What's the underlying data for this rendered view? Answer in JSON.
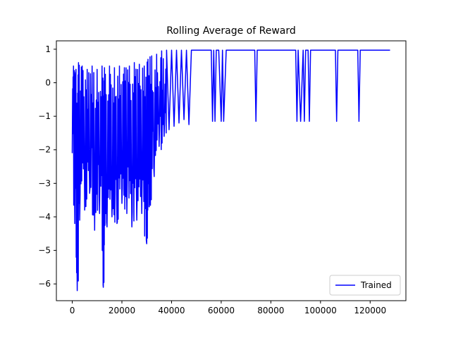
{
  "chart_data": {
    "type": "line",
    "title": "Rolling Average of Reward",
    "xlabel": "",
    "ylabel": "",
    "xlim": [
      -6400,
      134400
    ],
    "ylim": [
      -6.5,
      1.25
    ],
    "xticks": [
      0,
      20000,
      40000,
      60000,
      80000,
      100000,
      120000
    ],
    "xtick_labels": [
      "0",
      "20000",
      "40000",
      "60000",
      "80000",
      "100000",
      "120000"
    ],
    "yticks": [
      -6,
      -5,
      -4,
      -3,
      -2,
      -1,
      0,
      1
    ],
    "ytick_labels": [
      "−6",
      "−5",
      "−4",
      "−3",
      "−2",
      "−1",
      "0",
      "1"
    ],
    "grid": false,
    "legend": {
      "position": "lower right",
      "entries": [
        "Trained"
      ]
    },
    "series": [
      {
        "name": "Trained",
        "color": "#0000ff",
        "description_points": {
          "x": [
            0,
            500,
            1000,
            1500,
            2000,
            2500,
            3000,
            4000,
            5000,
            6000,
            7000,
            8000,
            9000,
            10000,
            11000,
            12000,
            12500,
            13000,
            14000,
            15000,
            16000,
            17000,
            18000,
            19000,
            20000,
            21000,
            22000,
            23000,
            24000,
            25000,
            26000,
            27000,
            28000,
            29000,
            30000,
            30500,
            31000,
            32000,
            33000,
            34000,
            35000,
            36000,
            37000,
            38000,
            39000,
            40000,
            41000,
            42000,
            43000,
            44000,
            45000,
            46000,
            47000,
            48000,
            50000,
            52000,
            54000,
            56000,
            56500,
            57000,
            57500,
            58000,
            59000,
            60000,
            60500,
            61000,
            62000,
            65000,
            70000,
            73500,
            74000,
            74500,
            80000,
            85000,
            90000,
            90500,
            91000,
            92000,
            93000,
            93500,
            94000,
            95000,
            95500,
            96000,
            100000,
            105000,
            106000,
            106500,
            107000,
            110000,
            115000,
            115500,
            116000,
            120000,
            125000,
            128000
          ],
          "y": [
            -2.1,
            0.5,
            -4.2,
            0.4,
            -6.2,
            0.6,
            -4.1,
            0.5,
            -3.8,
            0.4,
            -3.3,
            0.5,
            -4.4,
            0.4,
            -3.9,
            0.5,
            -6.1,
            0.45,
            -4.3,
            0.5,
            -4.0,
            0.45,
            -4.2,
            0.5,
            -3.6,
            0.45,
            -3.9,
            0.5,
            -4.3,
            0.6,
            -4.1,
            0.55,
            -3.9,
            0.5,
            -4.8,
            0.7,
            -3.7,
            0.8,
            -2.8,
            0.85,
            -1.9,
            0.95,
            -1.6,
            0.97,
            -1.4,
            0.97,
            -1.3,
            0.97,
            -1.2,
            0.97,
            -1.1,
            0.97,
            -1.25,
            0.97,
            0.97,
            0.97,
            0.97,
            0.97,
            -1.15,
            0.97,
            -1.15,
            0.97,
            0.97,
            -1.15,
            0.97,
            -1.15,
            0.97,
            0.97,
            0.97,
            0.97,
            -1.15,
            0.97,
            0.97,
            0.97,
            0.97,
            -1.15,
            0.97,
            -1.15,
            0.97,
            -1.15,
            0.97,
            0.97,
            -1.15,
            0.97,
            0.97,
            0.97,
            0.97,
            -1.15,
            0.97,
            0.97,
            0.97,
            -1.15,
            0.97,
            0.97,
            0.97,
            0.97
          ]
        }
      }
    ]
  }
}
